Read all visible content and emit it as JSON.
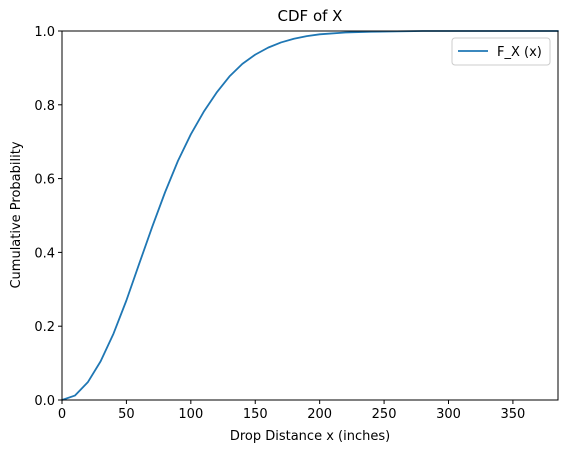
{
  "chart_data": {
    "type": "line",
    "title": "CDF of X",
    "xlabel": "Drop Distance x (inches)",
    "ylabel": "Cumulative Probability",
    "xlim": [
      0,
      385
    ],
    "ylim": [
      0,
      1.0
    ],
    "xticks": [
      0,
      50,
      100,
      150,
      200,
      250,
      300,
      350
    ],
    "yticks": [
      0.0,
      0.2,
      0.4,
      0.6,
      0.8,
      1.0
    ],
    "xtick_labels": [
      "0",
      "50",
      "100",
      "150",
      "200",
      "250",
      "300",
      "350"
    ],
    "ytick_labels": [
      "0.0",
      "0.2",
      "0.4",
      "0.6",
      "0.8",
      "1.0"
    ],
    "grid": false,
    "legend_position": "top-right",
    "series": [
      {
        "name": "F_X (x)",
        "color": "#1f77b4",
        "x": [
          0,
          10,
          20,
          30,
          40,
          50,
          60,
          70,
          80,
          90,
          100,
          110,
          120,
          130,
          140,
          150,
          160,
          170,
          180,
          190,
          200,
          220,
          240,
          260,
          280,
          300,
          320,
          340,
          360,
          385
        ],
        "y": [
          0.0,
          0.012,
          0.048,
          0.105,
          0.18,
          0.27,
          0.37,
          0.469,
          0.563,
          0.648,
          0.72,
          0.781,
          0.833,
          0.877,
          0.911,
          0.936,
          0.955,
          0.969,
          0.979,
          0.986,
          0.991,
          0.996,
          0.998,
          0.999,
          1.0,
          1.0,
          1.0,
          1.0,
          1.0,
          1.0
        ]
      }
    ]
  }
}
